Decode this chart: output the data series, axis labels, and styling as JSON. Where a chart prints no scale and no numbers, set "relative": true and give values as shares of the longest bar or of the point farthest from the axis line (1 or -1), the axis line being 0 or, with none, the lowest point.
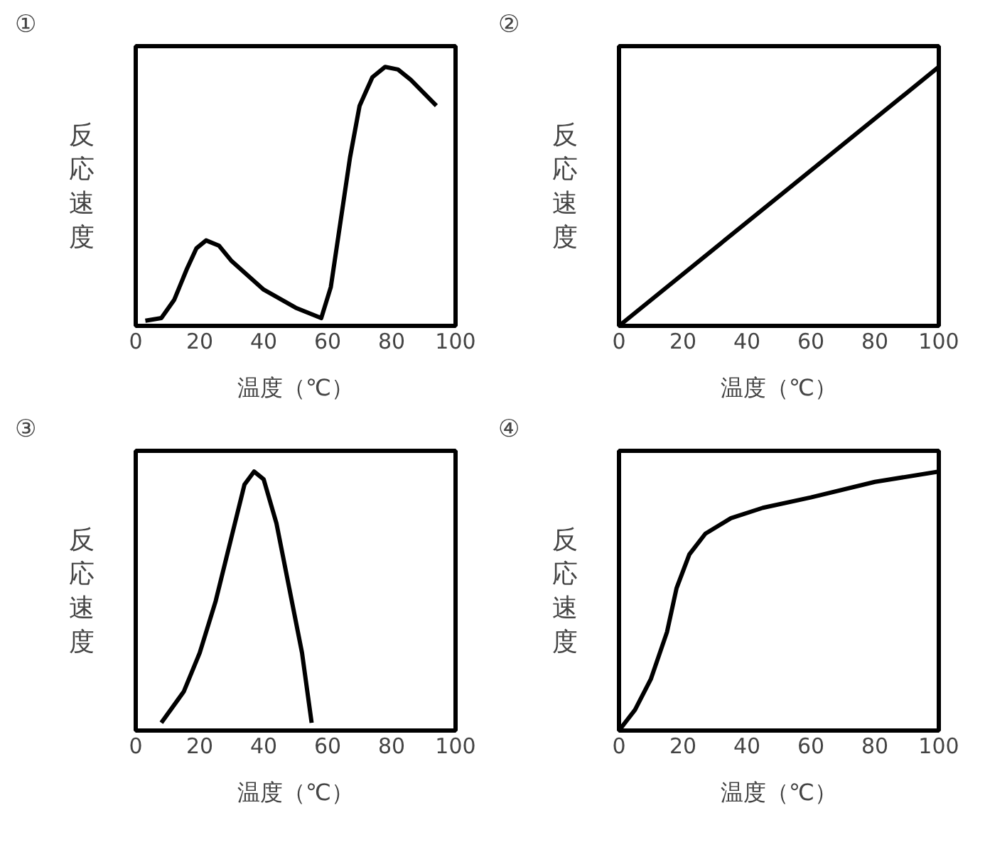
{
  "chart_data": [
    {
      "type": "line",
      "title": "①",
      "xlabel": "温度（℃）",
      "ylabel": "反応速度",
      "relative": true,
      "xlim": [
        0,
        100
      ],
      "xticks": [
        0,
        20,
        40,
        60,
        80,
        100
      ],
      "tick_labels": "x",
      "grid": false,
      "series": [
        {
          "color": "#000000",
          "x": [
            3,
            8,
            12,
            16,
            19,
            22,
            26,
            30,
            40,
            50,
            58,
            61,
            64,
            67,
            70,
            74,
            78,
            82,
            86,
            90,
            94
          ],
          "values": [
            0.02,
            0.03,
            0.1,
            0.22,
            0.3,
            0.33,
            0.31,
            0.25,
            0.14,
            0.07,
            0.03,
            0.15,
            0.4,
            0.65,
            0.85,
            0.96,
            1,
            0.99,
            0.95,
            0.9,
            0.85
          ]
        }
      ]
    },
    {
      "type": "line",
      "title": "②",
      "xlabel": "温度（℃）",
      "ylabel": "反応速度",
      "relative": true,
      "xlim": [
        0,
        100
      ],
      "xticks": [
        0,
        20,
        40,
        60,
        80,
        100
      ],
      "tick_labels": "x",
      "grid": false,
      "series": [
        {
          "color": "#000000",
          "x": [
            0,
            100
          ],
          "values": [
            0,
            1
          ]
        }
      ]
    },
    {
      "type": "line",
      "title": "③",
      "xlabel": "温度（℃）",
      "ylabel": "反応速度",
      "relative": true,
      "xlim": [
        0,
        100
      ],
      "xticks": [
        0,
        20,
        40,
        60,
        80,
        100
      ],
      "tick_labels": "x",
      "grid": false,
      "series": [
        {
          "color": "#000000",
          "x": [
            8,
            15,
            20,
            25,
            30,
            34,
            37,
            40,
            44,
            48,
            52,
            55
          ],
          "values": [
            0.03,
            0.15,
            0.3,
            0.5,
            0.75,
            0.95,
            1,
            0.97,
            0.8,
            0.55,
            0.3,
            0.03
          ]
        }
      ]
    },
    {
      "type": "line",
      "title": "④",
      "xlabel": "温度（℃）",
      "ylabel": "反応速度",
      "relative": true,
      "xlim": [
        0,
        100
      ],
      "xticks": [
        0,
        20,
        40,
        60,
        80,
        100
      ],
      "tick_labels": "x",
      "grid": false,
      "series": [
        {
          "color": "#000000",
          "x": [
            0,
            5,
            10,
            15,
            18,
            22,
            27,
            35,
            45,
            60,
            80,
            100
          ],
          "values": [
            0,
            0.08,
            0.2,
            0.38,
            0.55,
            0.68,
            0.76,
            0.82,
            0.86,
            0.9,
            0.96,
            1
          ]
        }
      ]
    }
  ]
}
